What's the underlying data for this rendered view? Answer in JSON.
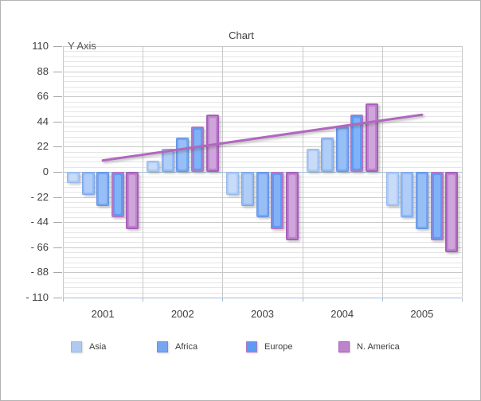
{
  "chart_data": {
    "type": "bar",
    "title": "Chart",
    "y_axis_title": "Y Axis",
    "categories": [
      "2001",
      "2002",
      "2003",
      "2004",
      "2005"
    ],
    "ylim": [
      -110,
      110
    ],
    "y_major_ticks": [
      {
        "value": 110,
        "label": "110"
      },
      {
        "value": 88,
        "label": "88"
      },
      {
        "value": 66,
        "label": "66"
      },
      {
        "value": 44,
        "label": "44"
      },
      {
        "value": 22,
        "label": "22"
      },
      {
        "value": 0,
        "label": "0"
      },
      {
        "value": -22,
        "label": "- 22"
      },
      {
        "value": -44,
        "label": "- 44"
      },
      {
        "value": -66,
        "label": "- 66"
      },
      {
        "value": -88,
        "label": "- 88"
      },
      {
        "value": -110,
        "label": "- 110"
      }
    ],
    "y_minor_step": 4.4,
    "grid": true,
    "legend_position": "bottom",
    "series": [
      {
        "name": "Asia",
        "in_legend": true,
        "fill": "#aecaf3",
        "border": "#97b9ec",
        "inner": "#c8dcf9",
        "values": [
          -10,
          10,
          -20,
          20,
          -30
        ]
      },
      {
        "name": "",
        "in_legend": false,
        "fill": "#92baf3",
        "border": "#7fa7ea",
        "inner": "#b0cdf7",
        "values": [
          -20,
          20,
          -30,
          30,
          -40
        ]
      },
      {
        "name": "Africa",
        "in_legend": true,
        "fill": "#76a6f2",
        "border": "#6493e4",
        "inner": "#97bff6",
        "values": [
          -30,
          30,
          -40,
          40,
          -50
        ]
      },
      {
        "name": "Europe",
        "in_legend": true,
        "fill": "#5d9af4",
        "border": "#b476c6",
        "inner": "#7fb2f7",
        "values": [
          -40,
          40,
          -50,
          50,
          -60
        ]
      },
      {
        "name": "N. America",
        "in_legend": true,
        "fill": "#bd84cc",
        "border": "#a75fb9",
        "inner": "#cfa5dc",
        "values": [
          -50,
          50,
          -60,
          60,
          -70
        ]
      }
    ],
    "trend_line": {
      "color": "#b167bf",
      "values": [
        10,
        20,
        30,
        40,
        50
      ]
    },
    "legend": [
      {
        "label": "Asia",
        "fill": "#aecaf3",
        "border": "#97b9ec"
      },
      {
        "label": "Africa",
        "fill": "#76a6f2",
        "border": "#6493e4"
      },
      {
        "label": "Europe",
        "fill": "#5d9af4",
        "border": "#b476c6"
      },
      {
        "label": "N. America",
        "fill": "#bd84cc",
        "border": "#a75fb9"
      }
    ],
    "axis_color": "#a2c0d6",
    "gridline_minor_color": "#e5e5e5",
    "gridline_major_color": "#c9c9c9",
    "text_color": "#3f3f3f"
  }
}
